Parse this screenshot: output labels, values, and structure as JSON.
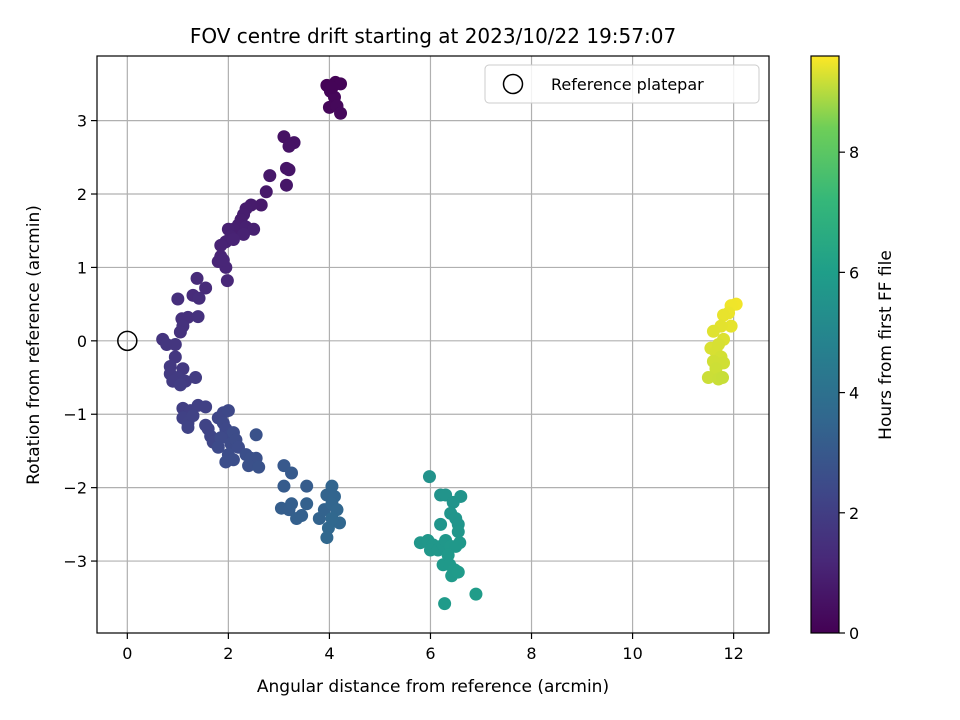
{
  "chart_data": {
    "type": "scatter",
    "title": "FOV centre drift starting at 2023/10/22 19:57:07",
    "xlabel": "Angular distance from reference (arcmin)",
    "ylabel": "Rotation from reference (arcmin)",
    "xlim": [
      -0.6,
      12.7
    ],
    "ylim": [
      -3.98,
      3.88
    ],
    "xticks": [
      0,
      2,
      4,
      6,
      8,
      10,
      12
    ],
    "yticks": [
      -3,
      -2,
      -1,
      0,
      1,
      2,
      3
    ],
    "xtick_labels": [
      "0",
      "2",
      "4",
      "6",
      "8",
      "10",
      "12"
    ],
    "ytick_labels": [
      "−3",
      "−2",
      "−1",
      "0",
      "1",
      "2",
      "3"
    ],
    "grid": true,
    "colormap": "viridis",
    "colorbar": {
      "label": "Hours from first FF file",
      "range": [
        0,
        9.6
      ],
      "ticks": [
        0,
        2,
        4,
        6,
        8
      ],
      "tick_labels": [
        "0",
        "2",
        "4",
        "6",
        "8"
      ]
    },
    "legend": {
      "placement": "top-right",
      "entries": [
        "Reference platepar"
      ]
    },
    "reference_point": {
      "x": 0,
      "y": 0
    },
    "points": [
      {
        "x": 3.95,
        "y": 3.48,
        "h": 0.05
      },
      {
        "x": 4.12,
        "y": 3.52,
        "h": 0.08
      },
      {
        "x": 4.22,
        "y": 3.5,
        "h": 0.1
      },
      {
        "x": 4.02,
        "y": 3.4,
        "h": 0.12
      },
      {
        "x": 4.1,
        "y": 3.32,
        "h": 0.15
      },
      {
        "x": 4.0,
        "y": 3.18,
        "h": 0.18
      },
      {
        "x": 4.15,
        "y": 3.2,
        "h": 0.2
      },
      {
        "x": 4.22,
        "y": 3.1,
        "h": 0.22
      },
      {
        "x": 4.05,
        "y": 3.45,
        "h": 0.1
      },
      {
        "x": 3.1,
        "y": 2.78,
        "h": 0.5
      },
      {
        "x": 3.3,
        "y": 2.7,
        "h": 0.55
      },
      {
        "x": 3.2,
        "y": 2.65,
        "h": 0.55
      },
      {
        "x": 3.15,
        "y": 2.35,
        "h": 0.6
      },
      {
        "x": 3.2,
        "y": 2.33,
        "h": 0.62
      },
      {
        "x": 3.15,
        "y": 2.12,
        "h": 0.65
      },
      {
        "x": 2.82,
        "y": 2.25,
        "h": 0.7
      },
      {
        "x": 2.75,
        "y": 2.03,
        "h": 0.72
      },
      {
        "x": 2.65,
        "y": 1.85,
        "h": 0.78
      },
      {
        "x": 2.45,
        "y": 1.85,
        "h": 0.8
      },
      {
        "x": 2.35,
        "y": 1.8,
        "h": 0.82
      },
      {
        "x": 2.3,
        "y": 1.72,
        "h": 0.85
      },
      {
        "x": 2.25,
        "y": 1.65,
        "h": 0.88
      },
      {
        "x": 2.2,
        "y": 1.58,
        "h": 0.9
      },
      {
        "x": 2.1,
        "y": 1.52,
        "h": 0.92
      },
      {
        "x": 2.0,
        "y": 1.52,
        "h": 0.95
      },
      {
        "x": 2.35,
        "y": 1.55,
        "h": 0.95
      },
      {
        "x": 2.5,
        "y": 1.52,
        "h": 0.98
      },
      {
        "x": 2.3,
        "y": 1.45,
        "h": 1.0
      },
      {
        "x": 2.05,
        "y": 1.42,
        "h": 1.0
      },
      {
        "x": 1.95,
        "y": 1.35,
        "h": 1.02
      },
      {
        "x": 1.85,
        "y": 1.3,
        "h": 1.05
      },
      {
        "x": 2.1,
        "y": 1.38,
        "h": 1.05
      },
      {
        "x": 1.85,
        "y": 1.15,
        "h": 1.1
      },
      {
        "x": 1.8,
        "y": 1.08,
        "h": 1.12
      },
      {
        "x": 1.95,
        "y": 1.0,
        "h": 1.15
      },
      {
        "x": 1.9,
        "y": 1.1,
        "h": 1.15
      },
      {
        "x": 1.98,
        "y": 0.82,
        "h": 1.2
      },
      {
        "x": 1.38,
        "y": 0.85,
        "h": 1.3
      },
      {
        "x": 1.3,
        "y": 0.62,
        "h": 1.35
      },
      {
        "x": 1.55,
        "y": 0.72,
        "h": 1.35
      },
      {
        "x": 1.42,
        "y": 0.58,
        "h": 1.4
      },
      {
        "x": 1.0,
        "y": 0.57,
        "h": 1.45
      },
      {
        "x": 1.08,
        "y": 0.3,
        "h": 1.5
      },
      {
        "x": 1.2,
        "y": 0.32,
        "h": 1.5
      },
      {
        "x": 1.4,
        "y": 0.33,
        "h": 1.52
      },
      {
        "x": 1.1,
        "y": 0.2,
        "h": 1.55
      },
      {
        "x": 1.05,
        "y": 0.12,
        "h": 1.58
      },
      {
        "x": 0.7,
        "y": 0.02,
        "h": 1.65
      },
      {
        "x": 0.78,
        "y": -0.05,
        "h": 1.7
      },
      {
        "x": 0.95,
        "y": -0.05,
        "h": 1.7
      },
      {
        "x": 0.95,
        "y": -0.22,
        "h": 1.75
      },
      {
        "x": 0.85,
        "y": -0.35,
        "h": 1.8
      },
      {
        "x": 1.1,
        "y": -0.38,
        "h": 1.82
      },
      {
        "x": 0.85,
        "y": -0.45,
        "h": 1.85
      },
      {
        "x": 1.0,
        "y": -0.5,
        "h": 1.88
      },
      {
        "x": 0.9,
        "y": -0.55,
        "h": 1.9
      },
      {
        "x": 1.15,
        "y": -0.55,
        "h": 1.9
      },
      {
        "x": 1.35,
        "y": -0.5,
        "h": 1.92
      },
      {
        "x": 1.05,
        "y": -0.6,
        "h": 1.95
      },
      {
        "x": 1.1,
        "y": -0.92,
        "h": 2.0
      },
      {
        "x": 1.25,
        "y": -0.95,
        "h": 2.05
      },
      {
        "x": 1.4,
        "y": -0.88,
        "h": 2.08
      },
      {
        "x": 1.55,
        "y": -0.9,
        "h": 2.1
      },
      {
        "x": 1.1,
        "y": -1.05,
        "h": 2.12
      },
      {
        "x": 1.2,
        "y": -1.12,
        "h": 2.15
      },
      {
        "x": 1.3,
        "y": -1.02,
        "h": 2.15
      },
      {
        "x": 1.2,
        "y": -1.18,
        "h": 2.18
      },
      {
        "x": 1.55,
        "y": -1.15,
        "h": 2.2
      },
      {
        "x": 1.6,
        "y": -1.2,
        "h": 2.22
      },
      {
        "x": 1.65,
        "y": -1.3,
        "h": 2.25
      },
      {
        "x": 1.7,
        "y": -1.38,
        "h": 2.28
      },
      {
        "x": 1.8,
        "y": -1.05,
        "h": 2.3
      },
      {
        "x": 1.9,
        "y": -0.98,
        "h": 2.32
      },
      {
        "x": 2.0,
        "y": -0.95,
        "h": 2.35
      },
      {
        "x": 1.9,
        "y": -1.12,
        "h": 2.35
      },
      {
        "x": 1.95,
        "y": -1.2,
        "h": 2.38
      },
      {
        "x": 2.0,
        "y": -1.3,
        "h": 2.4
      },
      {
        "x": 1.85,
        "y": -1.32,
        "h": 2.42
      },
      {
        "x": 1.8,
        "y": -1.45,
        "h": 2.45
      },
      {
        "x": 2.05,
        "y": -1.4,
        "h": 2.48
      },
      {
        "x": 2.1,
        "y": -1.25,
        "h": 2.5
      },
      {
        "x": 2.15,
        "y": -1.35,
        "h": 2.5
      },
      {
        "x": 2.2,
        "y": -1.45,
        "h": 2.52
      },
      {
        "x": 2.0,
        "y": -1.55,
        "h": 2.55
      },
      {
        "x": 1.95,
        "y": -1.65,
        "h": 2.58
      },
      {
        "x": 2.1,
        "y": -1.62,
        "h": 2.6
      },
      {
        "x": 2.35,
        "y": -1.55,
        "h": 2.65
      },
      {
        "x": 2.45,
        "y": -1.6,
        "h": 2.68
      },
      {
        "x": 2.55,
        "y": -1.6,
        "h": 2.7
      },
      {
        "x": 2.4,
        "y": -1.7,
        "h": 2.72
      },
      {
        "x": 2.6,
        "y": -1.72,
        "h": 2.75
      },
      {
        "x": 2.55,
        "y": -1.28,
        "h": 2.75
      },
      {
        "x": 3.1,
        "y": -1.7,
        "h": 3.0
      },
      {
        "x": 3.25,
        "y": -1.8,
        "h": 3.05
      },
      {
        "x": 3.1,
        "y": -1.98,
        "h": 3.1
      },
      {
        "x": 3.55,
        "y": -1.98,
        "h": 3.15
      },
      {
        "x": 3.05,
        "y": -2.28,
        "h": 3.2
      },
      {
        "x": 3.2,
        "y": -2.3,
        "h": 3.22
      },
      {
        "x": 3.25,
        "y": -2.22,
        "h": 3.25
      },
      {
        "x": 3.35,
        "y": -2.42,
        "h": 3.28
      },
      {
        "x": 3.45,
        "y": -2.38,
        "h": 3.3
      },
      {
        "x": 3.55,
        "y": -2.22,
        "h": 3.32
      },
      {
        "x": 3.8,
        "y": -2.42,
        "h": 3.4
      },
      {
        "x": 3.9,
        "y": -2.3,
        "h": 3.42
      },
      {
        "x": 3.95,
        "y": -2.1,
        "h": 3.45
      },
      {
        "x": 4.05,
        "y": -1.98,
        "h": 3.48
      },
      {
        "x": 4.1,
        "y": -2.12,
        "h": 3.5
      },
      {
        "x": 4.05,
        "y": -2.22,
        "h": 3.52
      },
      {
        "x": 4.15,
        "y": -2.3,
        "h": 3.55
      },
      {
        "x": 4.2,
        "y": -2.48,
        "h": 3.58
      },
      {
        "x": 3.98,
        "y": -2.55,
        "h": 3.6
      },
      {
        "x": 3.95,
        "y": -2.68,
        "h": 3.62
      },
      {
        "x": 4.05,
        "y": -2.42,
        "h": 3.62
      },
      {
        "x": 5.98,
        "y": -1.85,
        "h": 5.5
      },
      {
        "x": 6.2,
        "y": -2.1,
        "h": 5.52
      },
      {
        "x": 6.3,
        "y": -2.1,
        "h": 5.55
      },
      {
        "x": 6.45,
        "y": -2.2,
        "h": 5.55
      },
      {
        "x": 6.6,
        "y": -2.12,
        "h": 5.58
      },
      {
        "x": 6.4,
        "y": -2.35,
        "h": 5.6
      },
      {
        "x": 6.5,
        "y": -2.42,
        "h": 5.6
      },
      {
        "x": 6.55,
        "y": -2.5,
        "h": 5.62
      },
      {
        "x": 6.2,
        "y": -2.5,
        "h": 5.62
      },
      {
        "x": 6.55,
        "y": -2.6,
        "h": 5.65
      },
      {
        "x": 5.8,
        "y": -2.75,
        "h": 5.65
      },
      {
        "x": 5.95,
        "y": -2.72,
        "h": 5.68
      },
      {
        "x": 6.05,
        "y": -2.78,
        "h": 5.68
      },
      {
        "x": 6.0,
        "y": -2.85,
        "h": 5.7
      },
      {
        "x": 6.15,
        "y": -2.85,
        "h": 5.7
      },
      {
        "x": 6.25,
        "y": -2.78,
        "h": 5.72
      },
      {
        "x": 6.3,
        "y": -2.72,
        "h": 5.72
      },
      {
        "x": 6.4,
        "y": -2.8,
        "h": 5.74
      },
      {
        "x": 6.5,
        "y": -2.8,
        "h": 5.75
      },
      {
        "x": 6.58,
        "y": -2.75,
        "h": 5.76
      },
      {
        "x": 6.35,
        "y": -2.92,
        "h": 5.78
      },
      {
        "x": 6.25,
        "y": -3.05,
        "h": 5.8
      },
      {
        "x": 6.38,
        "y": -3.05,
        "h": 5.8
      },
      {
        "x": 6.48,
        "y": -3.12,
        "h": 5.82
      },
      {
        "x": 6.42,
        "y": -3.2,
        "h": 5.84
      },
      {
        "x": 6.55,
        "y": -3.15,
        "h": 5.85
      },
      {
        "x": 6.28,
        "y": -3.58,
        "h": 5.88
      },
      {
        "x": 6.9,
        "y": -3.45,
        "h": 5.9
      },
      {
        "x": 12.05,
        "y": 0.5,
        "h": 9.5
      },
      {
        "x": 11.95,
        "y": 0.48,
        "h": 9.48
      },
      {
        "x": 11.9,
        "y": 0.38,
        "h": 9.45
      },
      {
        "x": 11.8,
        "y": 0.35,
        "h": 9.42
      },
      {
        "x": 11.95,
        "y": 0.2,
        "h": 9.4
      },
      {
        "x": 11.75,
        "y": 0.2,
        "h": 9.38
      },
      {
        "x": 11.6,
        "y": 0.13,
        "h": 9.35
      },
      {
        "x": 11.8,
        "y": 0.02,
        "h": 9.32
      },
      {
        "x": 11.55,
        "y": -0.1,
        "h": 9.3
      },
      {
        "x": 11.65,
        "y": -0.15,
        "h": 9.28
      },
      {
        "x": 11.7,
        "y": -0.05,
        "h": 9.28
      },
      {
        "x": 11.75,
        "y": -0.22,
        "h": 9.25
      },
      {
        "x": 11.6,
        "y": -0.28,
        "h": 9.22
      },
      {
        "x": 11.8,
        "y": -0.3,
        "h": 9.22
      },
      {
        "x": 11.65,
        "y": -0.38,
        "h": 9.2
      },
      {
        "x": 11.5,
        "y": -0.5,
        "h": 9.18
      },
      {
        "x": 11.7,
        "y": -0.52,
        "h": 9.16
      },
      {
        "x": 11.78,
        "y": -0.5,
        "h": 9.15
      }
    ]
  }
}
